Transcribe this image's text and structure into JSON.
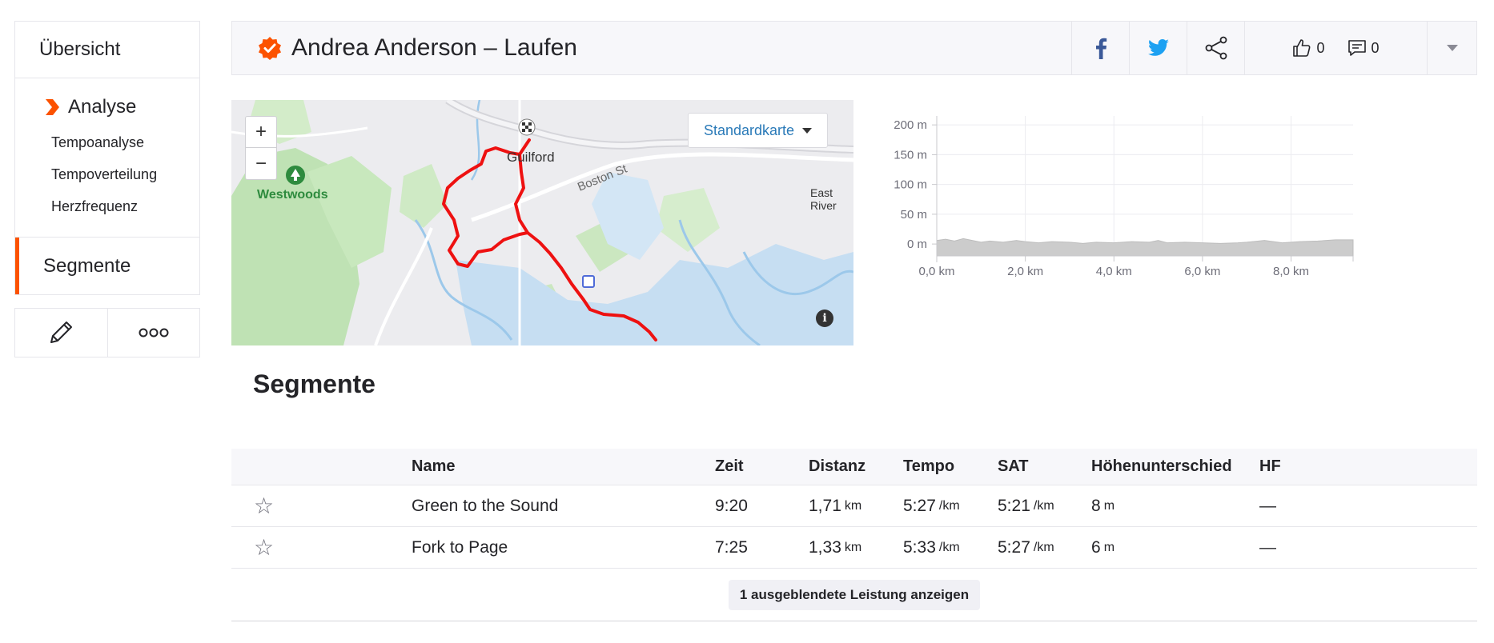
{
  "sidebar": {
    "overview": "Übersicht",
    "analysis": "Analyse",
    "sub_items": [
      "Tempoanalyse",
      "Tempoverteilung",
      "Herzfrequenz"
    ],
    "segments": "Segmente"
  },
  "header": {
    "title": "Andrea Anderson – Laufen",
    "kudos_count": "0",
    "comments_count": "0"
  },
  "map": {
    "style_selector": "Standardkarte",
    "labels": {
      "town": "Guilford",
      "park": "Westwoods",
      "street": "Boston St",
      "river": "East River"
    },
    "zoom_in": "+",
    "zoom_out": "−",
    "info": "i"
  },
  "chart_data": {
    "type": "area",
    "title": "",
    "xlabel": "",
    "ylabel": "",
    "x_ticks": [
      "0,0 km",
      "2,0 km",
      "4,0 km",
      "6,0 km",
      "8,0 km"
    ],
    "y_ticks": [
      "0 m",
      "50 m",
      "100 m",
      "150 m",
      "200 m"
    ],
    "xlim": [
      0,
      9.4
    ],
    "ylim": [
      -20,
      215
    ],
    "grid": true,
    "series": [
      {
        "x": [
          0,
          0.2,
          0.4,
          0.6,
          0.8,
          1.0,
          1.2,
          1.5,
          1.8,
          2.0,
          2.3,
          2.6,
          3.0,
          3.3,
          3.6,
          4.0,
          4.4,
          4.8,
          5.0,
          5.2,
          5.6,
          6.0,
          6.4,
          6.8,
          7.0,
          7.4,
          7.8,
          8.2,
          8.6,
          9.0,
          9.4
        ],
        "y": [
          6,
          8,
          5,
          9,
          6,
          3,
          5,
          3,
          6,
          4,
          2,
          4,
          3,
          1,
          3,
          2,
          4,
          3,
          6,
          2,
          3,
          2,
          1,
          2,
          3,
          6,
          2,
          4,
          5,
          7,
          7
        ]
      }
    ]
  },
  "segments": {
    "title": "Segmente",
    "columns": [
      "Name",
      "Zeit",
      "Distanz",
      "Tempo",
      "SAT",
      "Höhenunterschied",
      "HF"
    ],
    "rows": [
      {
        "name": "Green to the Sound",
        "time": "9:20",
        "distance": "1,71",
        "distance_unit": "km",
        "pace": "5:27",
        "pace_unit": "/km",
        "gap": "5:21",
        "gap_unit": "/km",
        "elev": "8",
        "elev_unit": "m",
        "hr": "—"
      },
      {
        "name": "Fork to Page",
        "time": "7:25",
        "distance": "1,33",
        "distance_unit": "km",
        "pace": "5:33",
        "pace_unit": "/km",
        "gap": "5:27",
        "gap_unit": "/km",
        "elev": "6",
        "elev_unit": "m",
        "hr": "—"
      }
    ],
    "show_hidden": "1 ausgeblendete Leistung anzeigen"
  },
  "colors": {
    "accent": "#fc5200",
    "route": "#ee1111",
    "facebook": "#3b5998",
    "twitter": "#1da1f2",
    "link": "#2a7ab8"
  }
}
